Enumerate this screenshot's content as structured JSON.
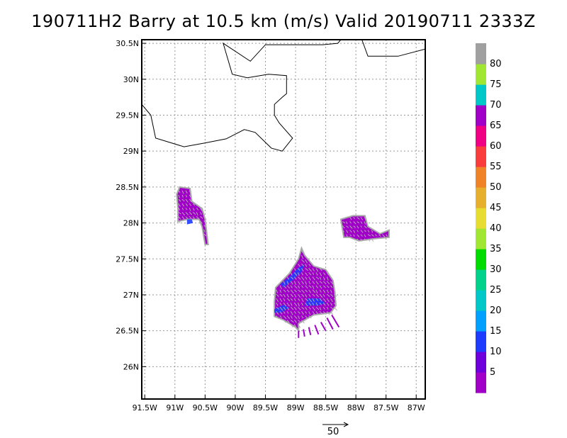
{
  "title": "190711H2 Barry at 10.5 km (m/s) Valid 20190711 2333Z",
  "map": {
    "lon_range": [
      -91.55,
      -86.85
    ],
    "lat_range": [
      25.55,
      30.55
    ],
    "lon_ticks": [
      {
        "value": -91.5,
        "label": "91.5W"
      },
      {
        "value": -91.0,
        "label": "91W"
      },
      {
        "value": -90.5,
        "label": "90.5W"
      },
      {
        "value": -90.0,
        "label": "90W"
      },
      {
        "value": -89.5,
        "label": "89.5W"
      },
      {
        "value": -89.0,
        "label": "89W"
      },
      {
        "value": -88.5,
        "label": "88.5W"
      },
      {
        "value": -88.0,
        "label": "88W"
      },
      {
        "value": -87.5,
        "label": "87.5W"
      },
      {
        "value": -87.0,
        "label": "87W"
      }
    ],
    "lat_ticks": [
      {
        "value": 30.5,
        "label": "30.5N"
      },
      {
        "value": 30.0,
        "label": "30N"
      },
      {
        "value": 29.5,
        "label": "29.5N"
      },
      {
        "value": 29.0,
        "label": "29N"
      },
      {
        "value": 28.5,
        "label": "28.5N"
      },
      {
        "value": 28.0,
        "label": "28N"
      },
      {
        "value": 27.5,
        "label": "27.5N"
      },
      {
        "value": 27.0,
        "label": "27N"
      },
      {
        "value": 26.5,
        "label": "26.5N"
      },
      {
        "value": 26.0,
        "label": "26N"
      }
    ],
    "grid": "dotted"
  },
  "coastlines": [
    [
      [
        -91.55,
        29.65
      ],
      [
        -91.4,
        29.5
      ],
      [
        -91.32,
        29.18
      ],
      [
        -90.85,
        29.06
      ],
      [
        -90.52,
        29.11
      ],
      [
        -90.15,
        29.17
      ],
      [
        -89.85,
        29.3
      ],
      [
        -89.67,
        29.26
      ],
      [
        -89.4,
        29.04
      ],
      [
        -89.22,
        29.0
      ],
      [
        -89.05,
        29.18
      ],
      [
        -89.27,
        29.39
      ],
      [
        -89.35,
        29.5
      ],
      [
        -89.35,
        29.65
      ],
      [
        -89.22,
        29.75
      ],
      [
        -89.15,
        29.8
      ],
      [
        -89.15,
        30.05
      ],
      [
        -89.45,
        30.07
      ],
      [
        -89.8,
        30.02
      ],
      [
        -90.05,
        30.07
      ],
      [
        -90.2,
        30.5
      ],
      [
        -89.75,
        30.25
      ],
      [
        -89.5,
        30.48
      ],
      [
        -89.0,
        30.48
      ],
      [
        -88.85,
        30.48
      ],
      [
        -88.55,
        30.48
      ],
      [
        -88.3,
        30.5
      ],
      [
        -88.25,
        30.55
      ]
    ],
    [
      [
        -87.9,
        30.55
      ],
      [
        -87.8,
        30.32
      ],
      [
        -87.3,
        30.32
      ],
      [
        -86.85,
        30.42
      ]
    ]
  ],
  "colorbar": {
    "labels": [
      "5",
      "10",
      "15",
      "20",
      "25",
      "30",
      "35",
      "40",
      "45",
      "50",
      "55",
      "60",
      "65",
      "70",
      "75",
      "80"
    ],
    "colors": [
      "#a000c8",
      "#6e00dc",
      "#1e3cff",
      "#00a0ff",
      "#00c8c8",
      "#00d28c",
      "#00dc00",
      "#a0e632",
      "#e6dc32",
      "#e6af2d",
      "#f08228",
      "#fa3c3c",
      "#f00082",
      "#a000c8",
      "#00c8c8",
      "#a0e632",
      "#a0a0a0"
    ]
  },
  "wind_field": {
    "regions": [
      {
        "name": "main-echo",
        "polygon": [
          [
            -89.35,
            26.9
          ],
          [
            -89.33,
            27.1
          ],
          [
            -89.1,
            27.3
          ],
          [
            -88.95,
            27.5
          ],
          [
            -88.9,
            27.65
          ],
          [
            -88.85,
            27.55
          ],
          [
            -88.7,
            27.4
          ],
          [
            -88.5,
            27.35
          ],
          [
            -88.38,
            27.2
          ],
          [
            -88.35,
            27.05
          ],
          [
            -88.33,
            26.85
          ],
          [
            -88.42,
            26.75
          ],
          [
            -88.7,
            26.72
          ],
          [
            -88.95,
            26.6
          ],
          [
            -88.95,
            26.5
          ],
          [
            -89.0,
            26.55
          ],
          [
            -89.2,
            26.65
          ],
          [
            -89.35,
            26.7
          ]
        ],
        "vectors": {
          "step": 0.06,
          "dx": 0.035,
          "dy": -0.04
        }
      },
      {
        "name": "west-echo",
        "polygon": [
          [
            -90.92,
            28.5
          ],
          [
            -90.75,
            28.48
          ],
          [
            -90.72,
            28.3
          ],
          [
            -90.55,
            28.2
          ],
          [
            -90.5,
            28.05
          ],
          [
            -90.45,
            27.7
          ],
          [
            -90.5,
            27.7
          ],
          [
            -90.55,
            27.95
          ],
          [
            -90.6,
            28.05
          ],
          [
            -90.8,
            28.05
          ],
          [
            -90.95,
            28.02
          ],
          [
            -90.95,
            28.2
          ],
          [
            -90.97,
            28.4
          ]
        ],
        "vectors": {
          "step": 0.06,
          "dx": 0.03,
          "dy": -0.035
        }
      },
      {
        "name": "east-echo",
        "polygon": [
          [
            -88.25,
            28.05
          ],
          [
            -88.05,
            28.1
          ],
          [
            -87.85,
            28.1
          ],
          [
            -87.8,
            27.95
          ],
          [
            -87.6,
            27.85
          ],
          [
            -87.45,
            27.9
          ],
          [
            -87.45,
            27.8
          ],
          [
            -87.7,
            27.78
          ],
          [
            -87.95,
            27.75
          ],
          [
            -88.1,
            27.8
          ],
          [
            -88.2,
            27.8
          ]
        ],
        "vectors": {
          "step": 0.06,
          "dx": 0.03,
          "dy": -0.03
        }
      }
    ],
    "intense_patches": [
      {
        "polygon": [
          [
            -89.2,
            27.1
          ],
          [
            -89.05,
            27.2
          ],
          [
            -88.9,
            27.32
          ],
          [
            -88.85,
            27.42
          ],
          [
            -88.95,
            27.38
          ],
          [
            -89.1,
            27.25
          ],
          [
            -89.25,
            27.15
          ]
        ]
      },
      {
        "polygon": [
          [
            -89.35,
            26.8
          ],
          [
            -89.2,
            26.86
          ],
          [
            -89.1,
            26.82
          ],
          [
            -89.25,
            26.75
          ],
          [
            -89.35,
            26.75
          ]
        ]
      },
      {
        "polygon": [
          [
            -88.8,
            26.95
          ],
          [
            -88.6,
            26.95
          ],
          [
            -88.5,
            26.88
          ],
          [
            -88.65,
            26.85
          ],
          [
            -88.85,
            26.85
          ]
        ]
      },
      {
        "polygon": [
          [
            -90.8,
            28.05
          ],
          [
            -90.72,
            28.05
          ],
          [
            -90.7,
            28.0
          ],
          [
            -90.8,
            27.98
          ]
        ]
      }
    ],
    "streaks": [
      [
        [
          -88.95,
          26.5
        ],
        [
          -88.95,
          26.4
        ]
      ],
      [
        [
          -88.87,
          26.52
        ],
        [
          -88.85,
          26.42
        ]
      ],
      [
        [
          -88.78,
          26.55
        ],
        [
          -88.75,
          26.44
        ]
      ],
      [
        [
          -88.68,
          26.58
        ],
        [
          -88.62,
          26.45
        ]
      ],
      [
        [
          -88.58,
          26.62
        ],
        [
          -88.5,
          26.5
        ]
      ],
      [
        [
          -88.48,
          26.68
        ],
        [
          -88.38,
          26.52
        ]
      ],
      [
        [
          -88.4,
          26.72
        ],
        [
          -88.28,
          26.55
        ]
      ]
    ]
  },
  "reference_vector": {
    "label": "50",
    "magnitude": 50
  }
}
